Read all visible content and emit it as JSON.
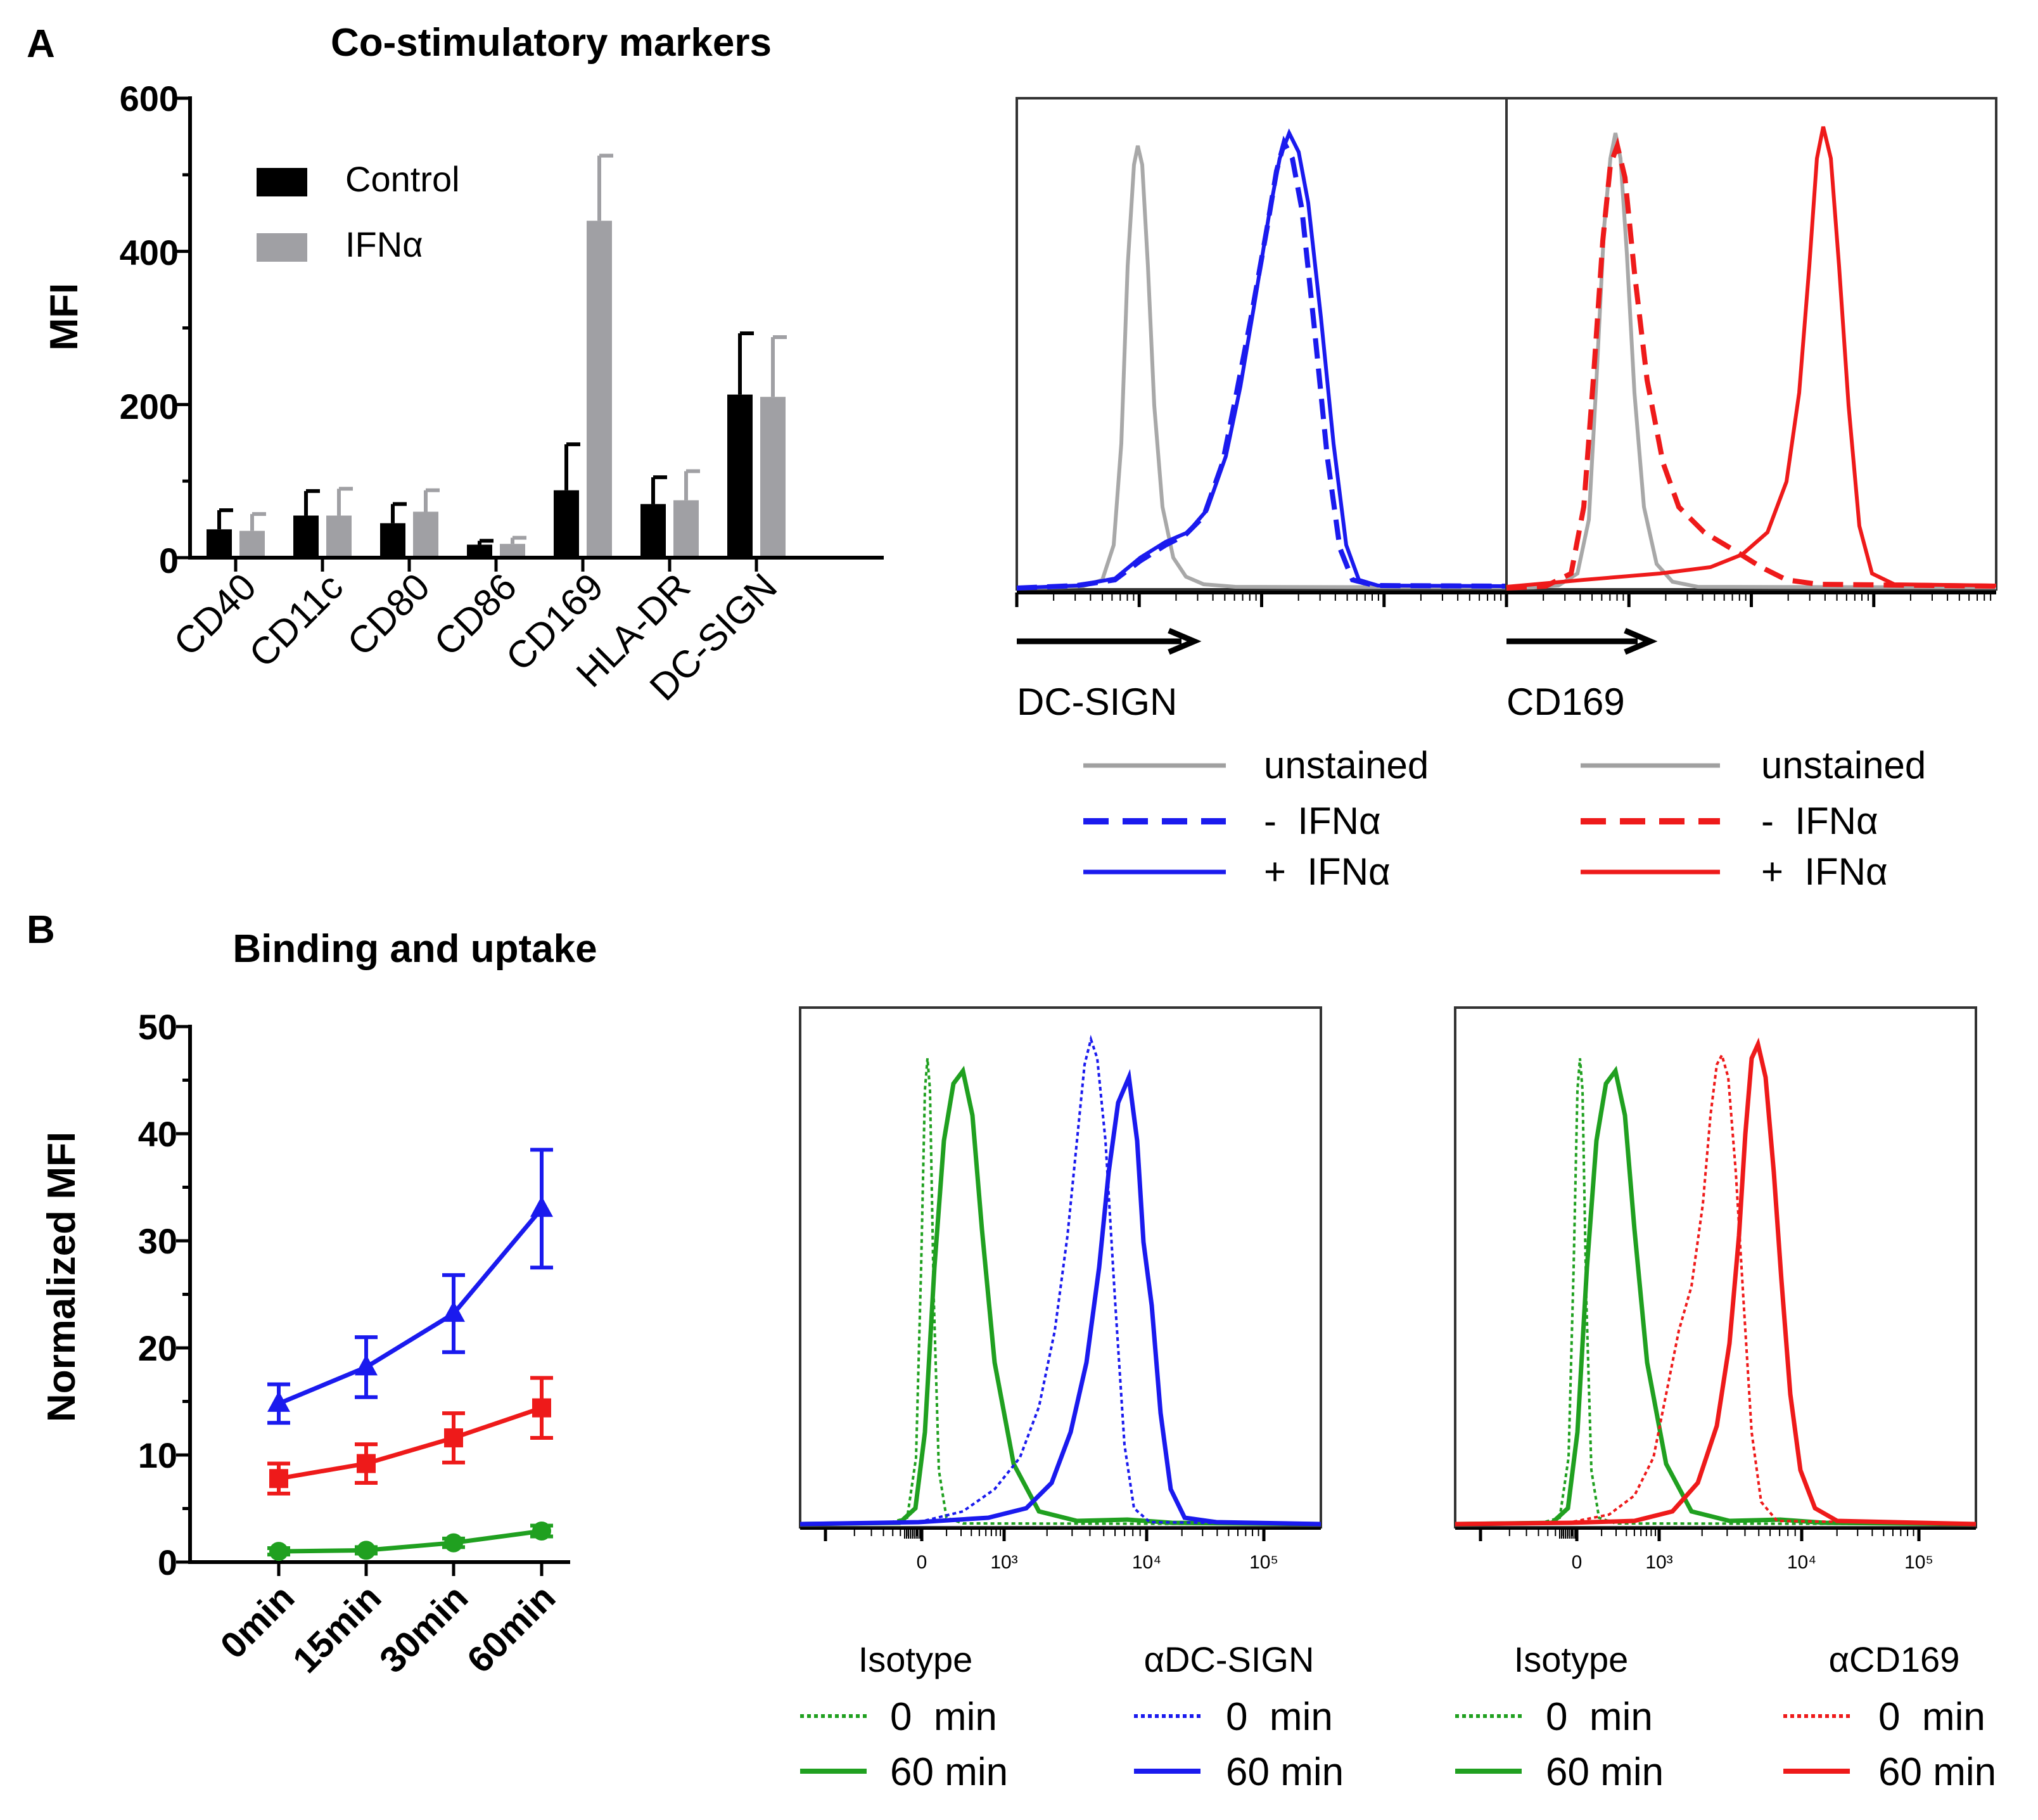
{
  "panel_labels": {
    "a": "A",
    "b": "B"
  },
  "chart_data": [
    {
      "id": "a-bar",
      "type": "bar",
      "title": "Co-stimulatory markers",
      "xlabel": "",
      "ylabel": "MFI",
      "ylim": [
        0,
        600
      ],
      "yticks": [
        "0",
        "200",
        "400",
        "600"
      ],
      "categories": [
        "CD40",
        "CD11c",
        "CD80",
        "CD86",
        "CD169",
        "HLA-DR",
        "DC-SIGN"
      ],
      "series": [
        {
          "name": "Control",
          "color": "#000000",
          "values": [
            37,
            55,
            45,
            17,
            88,
            70,
            213
          ],
          "errors": [
            25,
            32,
            25,
            5,
            60,
            35,
            80
          ]
        },
        {
          "name": "IFNα",
          "color": "#a0a0a4",
          "values": [
            35,
            55,
            60,
            18,
            440,
            75,
            210
          ],
          "errors": [
            22,
            35,
            28,
            8,
            85,
            38,
            78
          ]
        }
      ],
      "legend_position": "top-left"
    },
    {
      "id": "a-hist",
      "type": "line",
      "panels": [
        {
          "axis_label": "DC-SIGN",
          "legend": [
            {
              "label": "unstained",
              "color": "#a0a0a0",
              "dash": "solid"
            },
            {
              "label": "-  IFNα",
              "color": "#1a1aee",
              "dash": "dashed"
            },
            {
              "label": "+  IFNα",
              "color": "#1a1aee",
              "dash": "solid"
            }
          ]
        },
        {
          "axis_label": "CD169",
          "legend": [
            {
              "label": "unstained",
              "color": "#a0a0a0",
              "dash": "solid"
            },
            {
              "label": "-  IFNα",
              "color": "#ee1a1a",
              "dash": "dashed"
            },
            {
              "label": "+  IFNα",
              "color": "#ee1a1a",
              "dash": "solid"
            }
          ]
        }
      ]
    },
    {
      "id": "b-line",
      "type": "line",
      "title": "Binding and uptake",
      "xlabel": "",
      "ylabel": "Normalized MFI",
      "ylim": [
        0,
        50
      ],
      "yticks": [
        "0",
        "10",
        "20",
        "30",
        "40",
        "50"
      ],
      "categories": [
        "0min",
        "15min",
        "30min",
        "60min"
      ],
      "series": [
        {
          "name": "blue",
          "color": "#1a1aee",
          "marker": "triangle",
          "values": [
            14.8,
            18.2,
            23.2,
            33.0
          ],
          "errors": [
            1.8,
            2.8,
            3.6,
            5.5
          ]
        },
        {
          "name": "red",
          "color": "#ee1a1a",
          "marker": "square",
          "values": [
            7.8,
            9.2,
            11.6,
            14.4
          ],
          "errors": [
            1.4,
            1.8,
            2.3,
            2.8
          ]
        },
        {
          "name": "green",
          "color": "#20a020",
          "marker": "circle",
          "values": [
            1.0,
            1.1,
            1.8,
            2.9
          ],
          "errors": [
            0.3,
            0.3,
            0.4,
            0.5
          ]
        }
      ]
    },
    {
      "id": "b-hist",
      "type": "line",
      "tick_labels": [
        "0",
        "10³",
        "10⁴",
        "10⁵"
      ],
      "panels": [
        {
          "groups": [
            {
              "title": "Isotype",
              "entries": [
                {
                  "label": "0  min",
                  "color": "#20a020",
                  "dash": "dotted"
                },
                {
                  "label": "60 min",
                  "color": "#20a020",
                  "dash": "solid"
                }
              ]
            },
            {
              "title": "αDC-SIGN",
              "entries": [
                {
                  "label": "0  min",
                  "color": "#1a1aee",
                  "dash": "dotted"
                },
                {
                  "label": "60 min",
                  "color": "#1a1aee",
                  "dash": "solid"
                }
              ]
            }
          ]
        },
        {
          "groups": [
            {
              "title": "Isotype",
              "entries": [
                {
                  "label": "0  min",
                  "color": "#20a020",
                  "dash": "dotted"
                },
                {
                  "label": "60 min",
                  "color": "#20a020",
                  "dash": "solid"
                }
              ]
            },
            {
              "title": "αCD169",
              "entries": [
                {
                  "label": "0  min",
                  "color": "#ee1a1a",
                  "dash": "dotted"
                },
                {
                  "label": "60 min",
                  "color": "#ee1a1a",
                  "dash": "solid"
                }
              ]
            }
          ]
        }
      ]
    }
  ]
}
